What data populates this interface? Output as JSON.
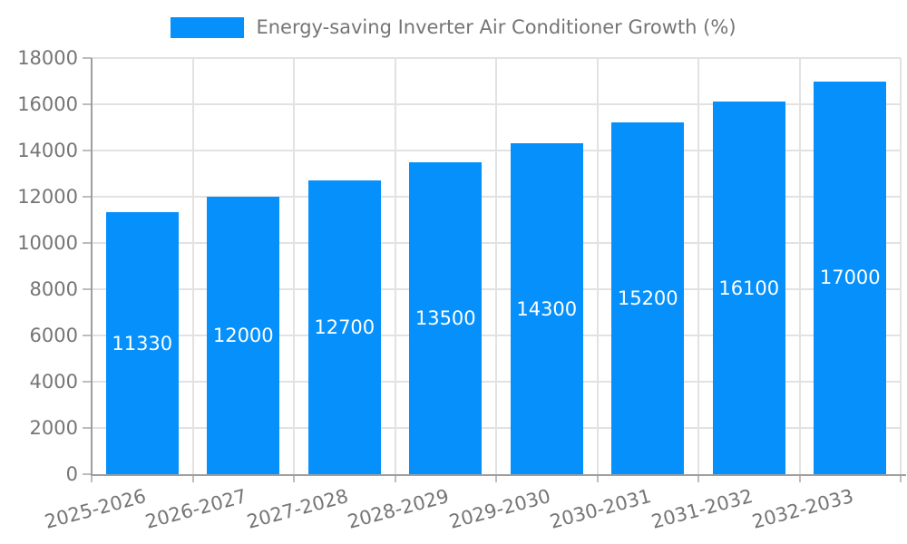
{
  "colors": {
    "bar": "#0590fb",
    "grid": "#e2e2e2",
    "axis": "#9e9e9e",
    "tick": "#bdbdbd",
    "text": "#757575",
    "bar_label": "#ffffff"
  },
  "legend": {
    "position": "top"
  },
  "chart_data": {
    "type": "bar",
    "title": "Energy-saving Inverter Air Conditioner Growth (%)",
    "xlabel": "",
    "ylabel": "",
    "categories": [
      "2025-2026",
      "2026-2027",
      "2027-2028",
      "2028-2029",
      "2029-2030",
      "2030-2031",
      "2031-2032",
      "2032-2033"
    ],
    "values": [
      11330,
      12000,
      12700,
      13500,
      14300,
      15200,
      16100,
      17000
    ],
    "ylim": [
      0,
      18000
    ],
    "yticks": [
      0,
      2000,
      4000,
      6000,
      8000,
      10000,
      12000,
      14000,
      16000,
      18000
    ],
    "grid": true,
    "legend_position": "top",
    "x_label_rotation_deg": -15
  }
}
